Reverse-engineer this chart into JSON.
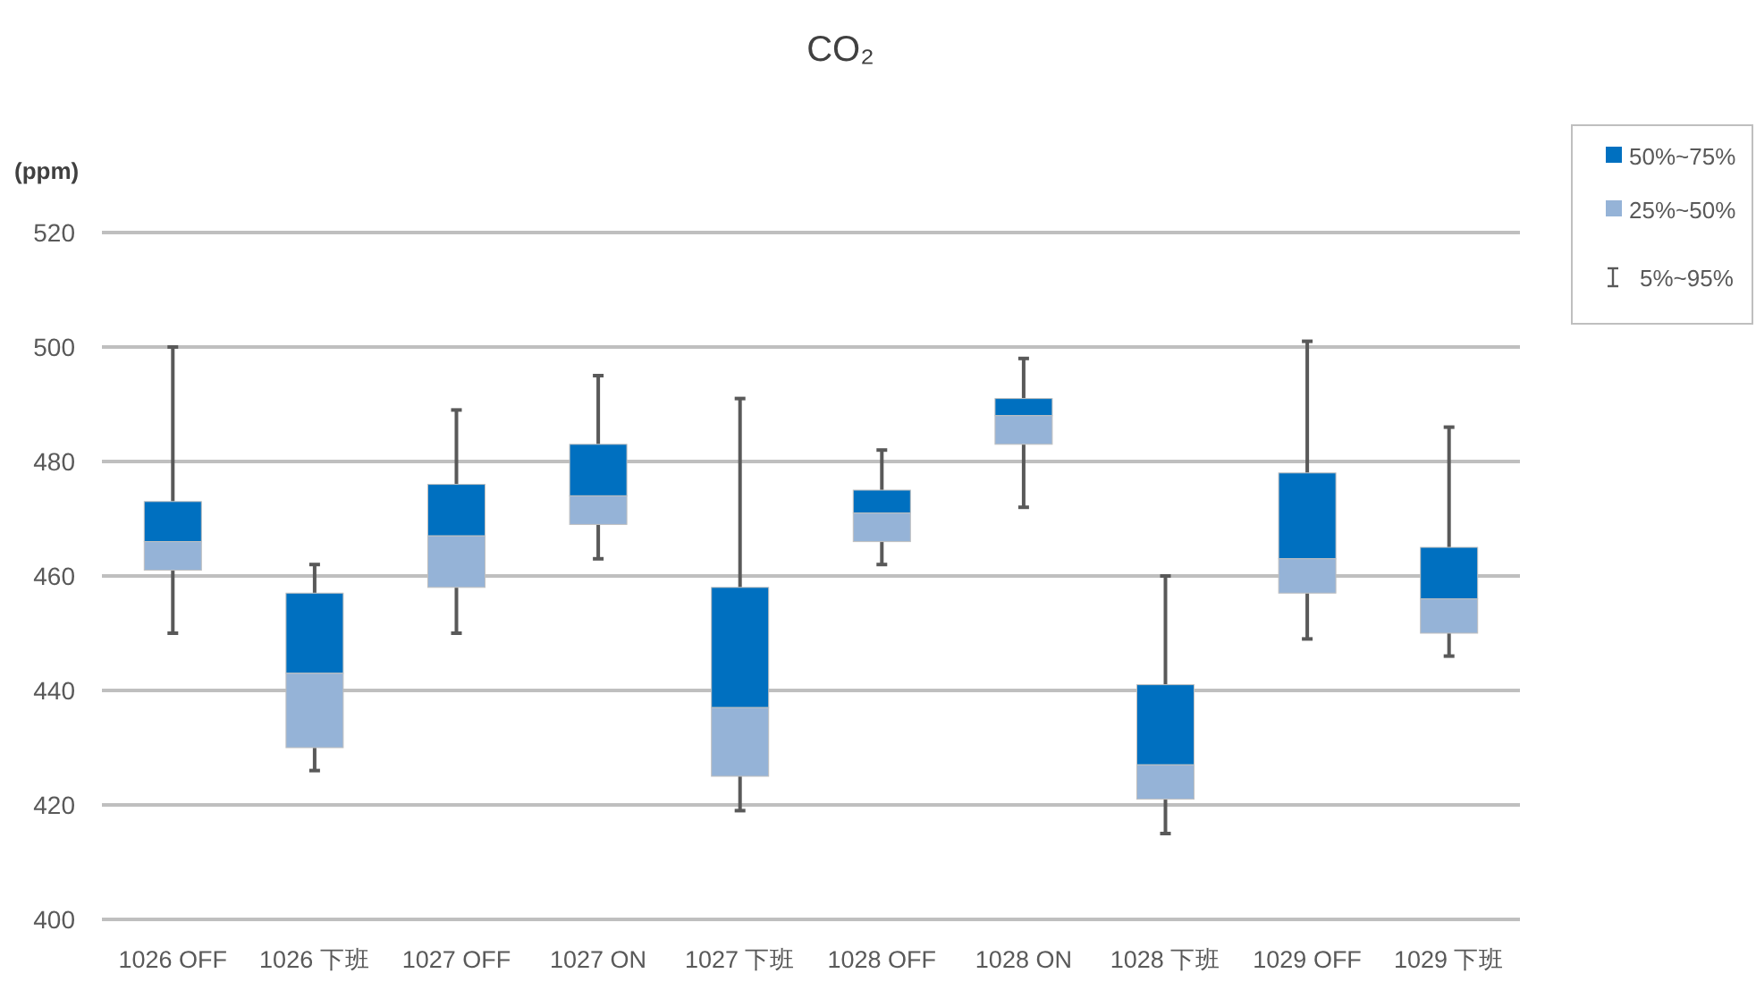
{
  "chart_data": {
    "type": "box",
    "title": "CO₂",
    "ylabel": "(ppm)",
    "categories": [
      "1026 OFF",
      "1026 下班",
      "1027 OFF",
      "1027 ON",
      "1027 下班",
      "1028 OFF",
      "1028 ON",
      "1028 下班",
      "1029 OFF",
      "1029 下班"
    ],
    "boxes": [
      {
        "low": 450,
        "q1": 461,
        "median": 466,
        "q3": 473,
        "high": 500
      },
      {
        "low": 426,
        "q1": 430,
        "median": 443,
        "q3": 457,
        "high": 462
      },
      {
        "low": 450,
        "q1": 458,
        "median": 467,
        "q3": 476,
        "high": 489
      },
      {
        "low": 463,
        "q1": 469,
        "median": 474,
        "q3": 483,
        "high": 495
      },
      {
        "low": 419,
        "q1": 425,
        "median": 437,
        "q3": 458,
        "high": 491
      },
      {
        "low": 462,
        "q1": 466,
        "median": 471,
        "q3": 475,
        "high": 482
      },
      {
        "low": 472,
        "q1": 483,
        "median": 488,
        "q3": 491,
        "high": 498
      },
      {
        "low": 415,
        "q1": 421,
        "median": 427,
        "q3": 441,
        "high": 460
      },
      {
        "low": 449,
        "q1": 457,
        "median": 463,
        "q3": 478,
        "high": 501
      },
      {
        "low": 446,
        "q1": 450,
        "median": 456,
        "q3": 465,
        "high": 486
      }
    ],
    "annotations": [
      "50%~75%",
      "25%~50%",
      "5%~95%"
    ],
    "ylim": [
      400,
      520
    ],
    "yticks": [
      400,
      420,
      440,
      460,
      480,
      500,
      520
    ],
    "grid": "y"
  }
}
